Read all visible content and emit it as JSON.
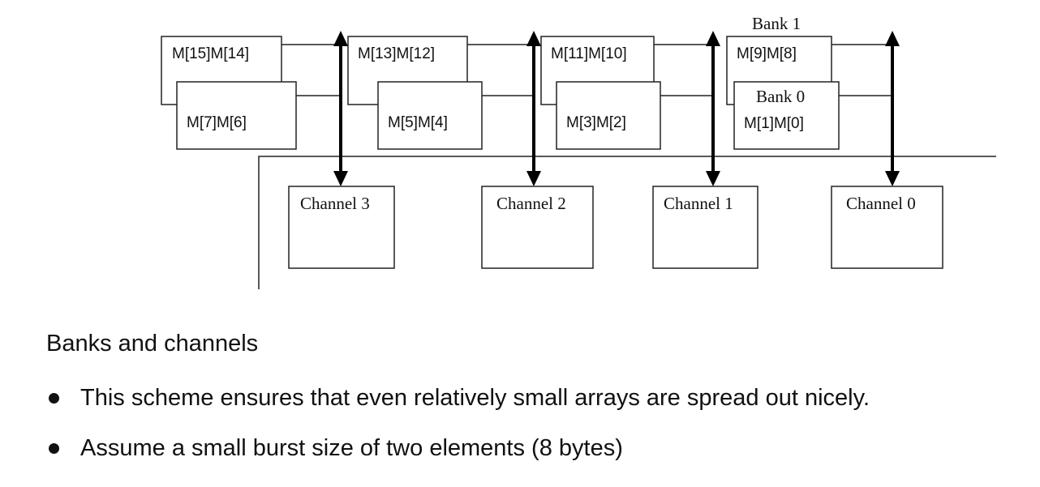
{
  "diagram": {
    "bank1_label": "Bank 1",
    "bank0_label": "Bank 0",
    "bank1_modules": [
      "M[15]M[14]",
      "M[13]M[12]",
      "M[11]M[10]",
      "M[9]M[8]"
    ],
    "bank0_modules": [
      "M[7]M[6]",
      "M[5]M[4]",
      "M[3]M[2]",
      "M[1]M[0]"
    ],
    "channels": [
      "Channel 3",
      "Channel 2",
      "Channel 1",
      "Channel 0"
    ]
  },
  "caption": "Banks and channels",
  "bullets": [
    "This scheme ensures that even relatively small arrays are spread out nicely.",
    "Assume a small burst size of two elements (8 bytes)"
  ]
}
